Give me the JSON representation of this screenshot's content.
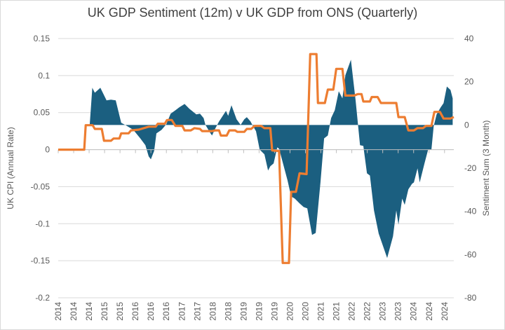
{
  "chart_data": {
    "type": "area+line",
    "title": "UK GDP Sentiment (12m) v UK GDP from ONS (Quarterly)",
    "xlabel": "",
    "ylabel_left": "UK CPI (Annual Rate)",
    "ylabel_right": "Sentiment Sum (3 Month)",
    "xlim": [
      2014,
      2024.8
    ],
    "ylim_left": [
      -0.2,
      0.15
    ],
    "ylim_right": [
      -80,
      40
    ],
    "yticks_left": [
      "0.15",
      "0.1",
      "0.05",
      "0",
      "-0.05",
      "-0.1",
      "-0.15",
      "-0.2"
    ],
    "yticks_right": [
      "40",
      "20",
      "0",
      "-20",
      "-40",
      "-60",
      "-80"
    ],
    "xtick_labels": [
      "2014",
      "2014",
      "2014",
      "2015",
      "2015",
      "2016",
      "2016",
      "2016",
      "2017",
      "2017",
      "2018",
      "2018",
      "2019",
      "2019",
      "2019",
      "2020",
      "2020",
      "2021",
      "2021",
      "2022",
      "2022",
      "2023",
      "2023",
      "2024",
      "2024",
      "2024"
    ],
    "grid": true,
    "legend": "none",
    "colors": {
      "area": "#1b5f80",
      "line": "#ed7d31"
    },
    "series": [
      {
        "axis": "right",
        "type": "area",
        "points": [
          [
            2014.86,
            0
          ],
          [
            2014.93,
            17.2
          ],
          [
            2015.0,
            14.9
          ],
          [
            2015.15,
            17.2
          ],
          [
            2015.32,
            11.4
          ],
          [
            2015.44,
            11.7
          ],
          [
            2015.57,
            11.4
          ],
          [
            2015.72,
            1.0
          ],
          [
            2015.86,
            -0.3
          ],
          [
            2016.05,
            -2.3
          ],
          [
            2016.24,
            -6.2
          ],
          [
            2016.38,
            -9.4
          ],
          [
            2016.47,
            -14.6
          ],
          [
            2016.53,
            -15.9
          ],
          [
            2016.62,
            -12.0
          ],
          [
            2016.68,
            -3.9
          ],
          [
            2016.82,
            -2.3
          ],
          [
            2016.95,
            0.3
          ],
          [
            2017.07,
            5.2
          ],
          [
            2017.2,
            6.8
          ],
          [
            2017.3,
            8.1
          ],
          [
            2017.45,
            9.7
          ],
          [
            2017.58,
            7.5
          ],
          [
            2017.77,
            4.9
          ],
          [
            2017.87,
            5.2
          ],
          [
            2017.97,
            3.2
          ],
          [
            2018.02,
            0
          ],
          [
            2018.16,
            -3.9
          ],
          [
            2018.2,
            -4.9
          ],
          [
            2018.29,
            -1.6
          ],
          [
            2018.39,
            1.6
          ],
          [
            2018.58,
            6.5
          ],
          [
            2018.64,
            4.2
          ],
          [
            2018.73,
            9.1
          ],
          [
            2018.87,
            2.6
          ],
          [
            2018.98,
            0
          ],
          [
            2019.08,
            2.6
          ],
          [
            2019.15,
            3.6
          ],
          [
            2019.25,
            1.6
          ],
          [
            2019.31,
            -0.3
          ],
          [
            2019.4,
            -2.9
          ],
          [
            2019.5,
            -11.4
          ],
          [
            2019.63,
            -13.6
          ],
          [
            2019.73,
            -21.1
          ],
          [
            2019.79,
            -19.1
          ],
          [
            2019.88,
            -17.8
          ],
          [
            2019.98,
            -10.4
          ],
          [
            2020.03,
            -11.0
          ],
          [
            2020.26,
            -25.6
          ],
          [
            2020.36,
            -33.1
          ],
          [
            2020.46,
            -34.1
          ],
          [
            2020.59,
            -36.3
          ],
          [
            2020.7,
            -38.0
          ],
          [
            2020.8,
            -38.6
          ],
          [
            2020.93,
            -50.9
          ],
          [
            2021.03,
            -50.0
          ],
          [
            2021.16,
            -26.6
          ],
          [
            2021.26,
            -6.2
          ],
          [
            2021.36,
            -4.9
          ],
          [
            2021.45,
            3.2
          ],
          [
            2021.55,
            6.8
          ],
          [
            2021.66,
            15.6
          ],
          [
            2021.76,
            12.3
          ],
          [
            2021.84,
            23.0
          ],
          [
            2021.99,
            30.2
          ],
          [
            2022.12,
            11.4
          ],
          [
            2022.24,
            -9.4
          ],
          [
            2022.33,
            -9.7
          ],
          [
            2022.43,
            -22.4
          ],
          [
            2022.51,
            -23.4
          ],
          [
            2022.62,
            -39.6
          ],
          [
            2022.75,
            -50.3
          ],
          [
            2022.98,
            -61.6
          ],
          [
            2023.14,
            -51.6
          ],
          [
            2023.23,
            -39.6
          ],
          [
            2023.29,
            -46.1
          ],
          [
            2023.39,
            -34.1
          ],
          [
            2023.46,
            -37.0
          ],
          [
            2023.56,
            -29.8
          ],
          [
            2023.66,
            -27.2
          ],
          [
            2023.71,
            -26.6
          ],
          [
            2023.81,
            -20.1
          ],
          [
            2023.87,
            -26.6
          ],
          [
            2024.0,
            -17.8
          ],
          [
            2024.1,
            -11.4
          ],
          [
            2024.19,
            -11.4
          ],
          [
            2024.25,
            -0.6
          ],
          [
            2024.33,
            4.9
          ],
          [
            2024.44,
            8.1
          ],
          [
            2024.52,
            10.1
          ],
          [
            2024.61,
            17.8
          ],
          [
            2024.71,
            16.2
          ],
          [
            2024.77,
            12.3
          ],
          [
            2024.77,
            0
          ]
        ]
      },
      {
        "axis": "left",
        "type": "line",
        "points": [
          [
            2014.0,
            0
          ],
          [
            2014.71,
            0
          ],
          [
            2014.75,
            0.033
          ],
          [
            2014.94,
            0.033
          ],
          [
            2015.0,
            0.028
          ],
          [
            2015.19,
            0.028
          ],
          [
            2015.25,
            0.012
          ],
          [
            2015.44,
            0.012
          ],
          [
            2015.51,
            0.015
          ],
          [
            2015.67,
            0.015
          ],
          [
            2015.72,
            0.022
          ],
          [
            2015.92,
            0.022
          ],
          [
            2015.99,
            0.026
          ],
          [
            2016.2,
            0.027
          ],
          [
            2016.47,
            0.031
          ],
          [
            2016.66,
            0.031
          ],
          [
            2016.72,
            0.035
          ],
          [
            2016.91,
            0.035
          ],
          [
            2016.97,
            0.04
          ],
          [
            2017.1,
            0.04
          ],
          [
            2017.2,
            0.032
          ],
          [
            2017.39,
            0.032
          ],
          [
            2017.45,
            0.026
          ],
          [
            2017.62,
            0.026
          ],
          [
            2017.72,
            0.029
          ],
          [
            2017.87,
            0.028
          ],
          [
            2017.93,
            0.025
          ],
          [
            2018.21,
            0.025
          ],
          [
            2018.29,
            0.026
          ],
          [
            2018.39,
            0.026
          ],
          [
            2018.44,
            0.019
          ],
          [
            2018.6,
            0.019
          ],
          [
            2018.67,
            0.026
          ],
          [
            2018.83,
            0.026
          ],
          [
            2018.89,
            0.024
          ],
          [
            2019.08,
            0.024
          ],
          [
            2019.15,
            0.028
          ],
          [
            2019.27,
            0.028
          ],
          [
            2019.36,
            0.032
          ],
          [
            2019.54,
            0.032
          ],
          [
            2019.63,
            0.029
          ],
          [
            2019.79,
            0.029
          ],
          [
            2019.84,
            -0.001
          ],
          [
            2020.03,
            -0.002
          ],
          [
            2020.13,
            -0.153
          ],
          [
            2020.3,
            -0.153
          ],
          [
            2020.36,
            -0.057
          ],
          [
            2020.49,
            -0.057
          ],
          [
            2020.59,
            -0.032
          ],
          [
            2020.78,
            -0.033
          ],
          [
            2020.88,
            0.129
          ],
          [
            2021.05,
            0.129
          ],
          [
            2021.09,
            0.063
          ],
          [
            2021.28,
            0.063
          ],
          [
            2021.36,
            0.081
          ],
          [
            2021.51,
            0.081
          ],
          [
            2021.59,
            0.109
          ],
          [
            2021.76,
            0.109
          ],
          [
            2021.84,
            0.073
          ],
          [
            2022.08,
            0.073
          ],
          [
            2022.18,
            0.075
          ],
          [
            2022.28,
            0.075
          ],
          [
            2022.33,
            0.065
          ],
          [
            2022.51,
            0.065
          ],
          [
            2022.56,
            0.071
          ],
          [
            2022.72,
            0.071
          ],
          [
            2022.81,
            0.063
          ],
          [
            2023.23,
            0.063
          ],
          [
            2023.29,
            0.044
          ],
          [
            2023.46,
            0.044
          ],
          [
            2023.56,
            0.026
          ],
          [
            2023.71,
            0.026
          ],
          [
            2023.81,
            0.029
          ],
          [
            2023.96,
            0.029
          ],
          [
            2024.04,
            0.032
          ],
          [
            2024.19,
            0.032
          ],
          [
            2024.27,
            0.051
          ],
          [
            2024.42,
            0.051
          ],
          [
            2024.52,
            0.042
          ],
          [
            2024.71,
            0.042
          ],
          [
            2024.8,
            0.044
          ]
        ]
      }
    ]
  }
}
